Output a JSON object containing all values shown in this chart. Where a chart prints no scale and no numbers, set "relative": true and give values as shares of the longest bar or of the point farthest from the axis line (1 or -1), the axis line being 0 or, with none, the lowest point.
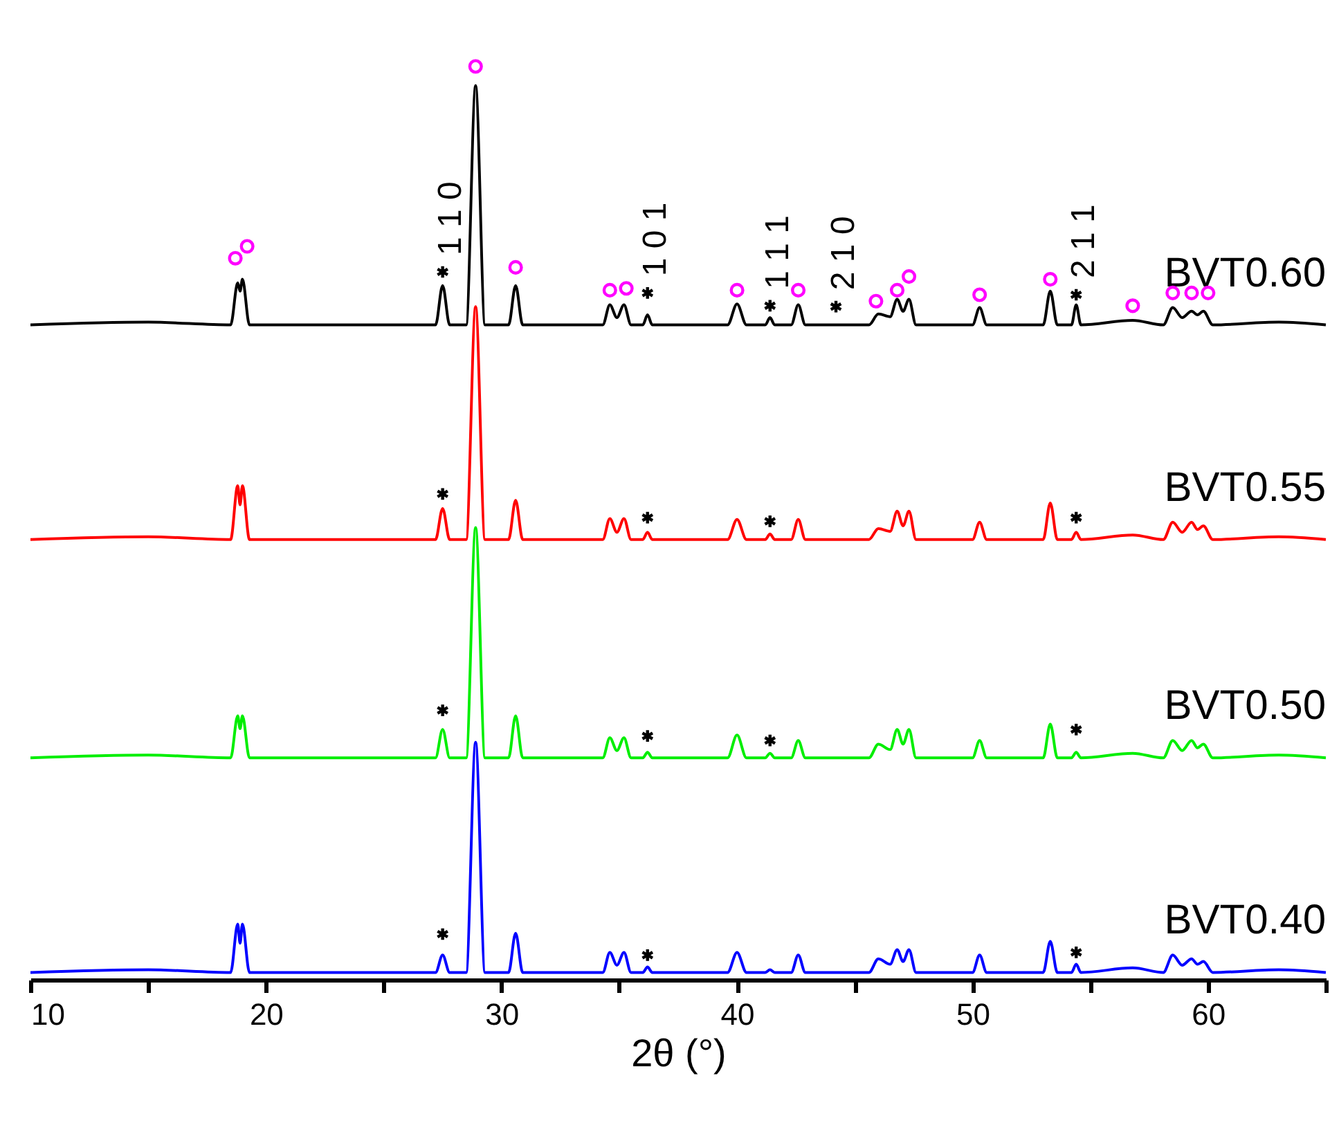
{
  "chart_data": {
    "type": "line",
    "relative": true,
    "xlabel": "2θ (°)",
    "xlim": [
      10,
      65
    ],
    "xticks": [
      10,
      {
        "value": 15,
        "label": null
      },
      20,
      {
        "value": 25,
        "label": null
      },
      30,
      {
        "value": 35,
        "label": null
      },
      40,
      {
        "value": 45,
        "label": null
      },
      50,
      {
        "value": 55,
        "label": null
      },
      60,
      {
        "value": 65,
        "label": null
      }
    ],
    "x": [
      10,
      15,
      18.5,
      18.8,
      18.9,
      19.0,
      19.3,
      27.2,
      27.5,
      27.8,
      28.5,
      28.9,
      29.3,
      30.3,
      30.6,
      30.9,
      34.3,
      34.6,
      34.9,
      35.2,
      35.5,
      36.0,
      36.2,
      36.4,
      39.6,
      40.0,
      40.4,
      41.2,
      41.4,
      41.6,
      42.3,
      42.6,
      42.9,
      45.6,
      46.0,
      46.5,
      46.8,
      47.05,
      47.3,
      47.6,
      50.0,
      50.3,
      50.6,
      53.0,
      53.3,
      53.6,
      54.2,
      54.4,
      54.6,
      56.8,
      58.1,
      58.5,
      58.9,
      59.3,
      59.55,
      59.8,
      60.2,
      63.0,
      65
    ],
    "series": [
      {
        "name": "BVT0.60",
        "color": "#000000",
        "values": [
          0.717,
          0.72,
          0.717,
          0.763,
          0.754,
          0.767,
          0.717,
          0.717,
          0.76,
          0.717,
          0.717,
          0.979,
          0.717,
          0.717,
          0.76,
          0.717,
          0.717,
          0.739,
          0.725,
          0.739,
          0.717,
          0.717,
          0.728,
          0.717,
          0.717,
          0.74,
          0.717,
          0.717,
          0.725,
          0.717,
          0.717,
          0.739,
          0.717,
          0.717,
          0.729,
          0.726,
          0.745,
          0.732,
          0.745,
          0.717,
          0.717,
          0.736,
          0.717,
          0.717,
          0.754,
          0.717,
          0.717,
          0.739,
          0.717,
          0.722,
          0.717,
          0.736,
          0.725,
          0.732,
          0.728,
          0.732,
          0.717,
          0.72,
          0.717
        ]
      },
      {
        "name": "BVT0.55",
        "color": "#ff0000",
        "values": [
          0.482,
          0.485,
          0.482,
          0.541,
          0.52,
          0.541,
          0.482,
          0.482,
          0.516,
          0.482,
          0.482,
          0.737,
          0.482,
          0.482,
          0.525,
          0.482,
          0.482,
          0.505,
          0.49,
          0.505,
          0.482,
          0.482,
          0.49,
          0.482,
          0.482,
          0.504,
          0.482,
          0.482,
          0.488,
          0.482,
          0.482,
          0.504,
          0.482,
          0.482,
          0.494,
          0.491,
          0.513,
          0.497,
          0.513,
          0.482,
          0.482,
          0.501,
          0.482,
          0.482,
          0.522,
          0.482,
          0.482,
          0.49,
          0.482,
          0.487,
          0.482,
          0.501,
          0.49,
          0.501,
          0.493,
          0.497,
          0.482,
          0.485,
          0.482
        ]
      },
      {
        "name": "BVT0.50",
        "color": "#00ee00",
        "values": [
          0.243,
          0.246,
          0.243,
          0.289,
          0.275,
          0.289,
          0.243,
          0.243,
          0.274,
          0.243,
          0.243,
          0.495,
          0.243,
          0.243,
          0.289,
          0.243,
          0.243,
          0.265,
          0.251,
          0.265,
          0.243,
          0.243,
          0.249,
          0.243,
          0.243,
          0.268,
          0.243,
          0.243,
          0.248,
          0.243,
          0.243,
          0.262,
          0.243,
          0.243,
          0.258,
          0.252,
          0.274,
          0.258,
          0.274,
          0.243,
          0.243,
          0.262,
          0.243,
          0.243,
          0.28,
          0.243,
          0.243,
          0.249,
          0.243,
          0.248,
          0.243,
          0.262,
          0.251,
          0.262,
          0.254,
          0.258,
          0.243,
          0.246,
          0.243
        ]
      },
      {
        "name": "BVT0.40",
        "color": "#0000ff",
        "values": [
          0.008,
          0.011,
          0.008,
          0.061,
          0.04,
          0.061,
          0.008,
          0.008,
          0.027,
          0.008,
          0.008,
          0.26,
          0.008,
          0.008,
          0.051,
          0.008,
          0.008,
          0.03,
          0.016,
          0.03,
          0.008,
          0.008,
          0.014,
          0.008,
          0.008,
          0.03,
          0.008,
          0.008,
          0.011,
          0.008,
          0.008,
          0.027,
          0.008,
          0.008,
          0.023,
          0.017,
          0.033,
          0.02,
          0.033,
          0.008,
          0.008,
          0.027,
          0.008,
          0.008,
          0.042,
          0.008,
          0.008,
          0.017,
          0.008,
          0.013,
          0.008,
          0.027,
          0.016,
          0.023,
          0.017,
          0.02,
          0.008,
          0.011,
          0.008
        ]
      },
      {
        "type": "scatter",
        "marker": "circle",
        "color": "#ff00ff",
        "x": [
          18.7,
          19.2,
          28.9,
          30.6,
          34.6,
          35.3,
          40.0,
          42.6,
          45.9,
          46.8,
          47.3,
          50.3,
          53.3,
          56.8,
          58.5,
          59.3,
          60.0
        ],
        "values": [
          0.79,
          0.803,
          1,
          0.78,
          0.755,
          0.757,
          0.755,
          0.755,
          0.743,
          0.755,
          0.77,
          0.75,
          0.767,
          0.738,
          0.752,
          0.752,
          0.752
        ]
      },
      {
        "type": "scatter",
        "marker": "cross",
        "color": "#000000",
        "x": [
          27.5,
          36.2,
          41.4,
          44.2,
          54.4,
          27.5,
          36.2,
          41.4,
          54.4,
          27.5,
          36.2,
          41.4,
          54.4,
          27.5,
          36.2,
          54.4
        ],
        "values": [
          0.775,
          0.752,
          0.738,
          0.737,
          0.75,
          0.532,
          0.506,
          0.502,
          0.506,
          0.295,
          0.267,
          0.262,
          0.274,
          0.05,
          0.027,
          0.03
        ]
      }
    ],
    "annotations": [
      {
        "text": "1 1 0",
        "x": 27.5,
        "y": 0.775
      },
      {
        "text": "1 0 1",
        "x": 36.2,
        "y": 0.752
      },
      {
        "text": "1 1 1",
        "x": 41.4,
        "y": 0.738
      },
      {
        "text": "2 1 0",
        "x": 44.2,
        "y": 0.737
      },
      {
        "text": "2 1 1",
        "x": 54.4,
        "y": 0.75
      }
    ]
  }
}
